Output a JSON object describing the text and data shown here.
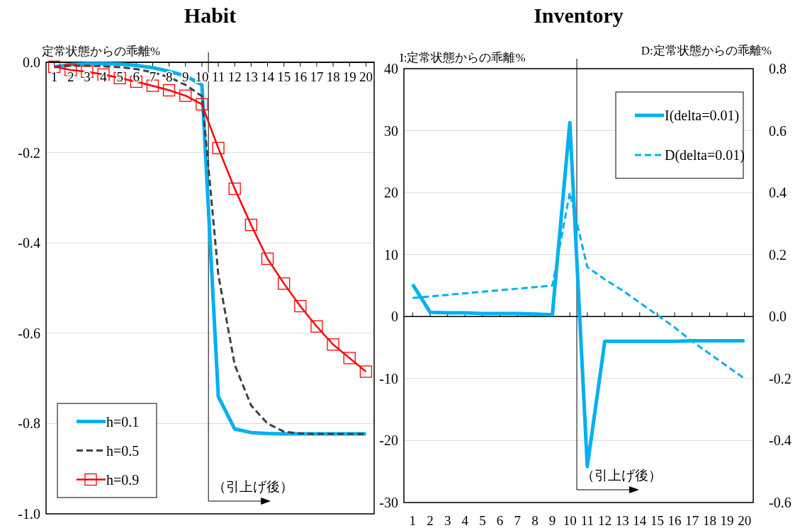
{
  "chart_data": [
    {
      "type": "line",
      "title": "Habit",
      "ylabel": "定常状態からの乖離%",
      "x": [
        1,
        2,
        3,
        4,
        5,
        6,
        7,
        8,
        9,
        10,
        11,
        12,
        13,
        14,
        15,
        16,
        17,
        18,
        19,
        20
      ],
      "xlim": [
        0.5,
        20.5
      ],
      "xticks": [
        1,
        2,
        3,
        4,
        5,
        6,
        7,
        8,
        9,
        10,
        11,
        12,
        13,
        14,
        15,
        16,
        17,
        18,
        19,
        20
      ],
      "ylim": [
        -1.0,
        0.0
      ],
      "yticks": [
        {
          "value": -1.0,
          "label": "-1.0"
        },
        {
          "value": -0.8,
          "label": "-0.8"
        },
        {
          "value": -0.6,
          "label": "-0.6"
        },
        {
          "value": -0.4,
          "label": "-0.4"
        },
        {
          "value": -0.2,
          "label": "-0.2"
        },
        {
          "value": 0.0,
          "label": "0.0"
        }
      ],
      "grid": "y",
      "legend": "bottom left",
      "series": [
        {
          "name": "h=0.1",
          "color": "#00b0f0",
          "line_style": "solid",
          "values": [
            -0.01,
            -0.005,
            -0.003,
            -0.003,
            -0.004,
            -0.007,
            -0.012,
            -0.02,
            -0.03,
            -0.05,
            -0.74,
            -0.812,
            -0.82,
            -0.822,
            -0.823,
            -0.823,
            -0.823,
            -0.823,
            -0.823,
            -0.823
          ]
        },
        {
          "name": "h=0.5",
          "color": "#404040",
          "line_style": "dashed",
          "values": [
            -0.01,
            -0.008,
            -0.008,
            -0.009,
            -0.011,
            -0.015,
            -0.022,
            -0.033,
            -0.05,
            -0.075,
            -0.47,
            -0.67,
            -0.76,
            -0.8,
            -0.818,
            -0.822,
            -0.823,
            -0.823,
            -0.823,
            -0.823
          ]
        },
        {
          "name": "h=0.9",
          "color": "#ff0000",
          "line_style": "solid",
          "marker": "square",
          "values": [
            -0.01,
            -0.017,
            -0.021,
            -0.027,
            -0.035,
            -0.043,
            -0.052,
            -0.062,
            -0.074,
            -0.093,
            -0.19,
            -0.28,
            -0.36,
            -0.435,
            -0.49,
            -0.54,
            -0.585,
            -0.625,
            -0.655,
            -0.685
          ]
        }
      ],
      "ref_lines": [
        {
          "axis": "x",
          "value": 10.4,
          "label": "（引上げ後）"
        }
      ]
    },
    {
      "type": "line",
      "title": "Inventory",
      "ylabel": "I:定常状態からの乖離%",
      "y2label": "D:定常状態からの乖離%",
      "x": [
        1,
        2,
        3,
        4,
        5,
        6,
        7,
        8,
        9,
        10,
        11,
        12,
        13,
        14,
        15,
        16,
        17,
        18,
        19,
        20
      ],
      "xlim": [
        0.5,
        20.5
      ],
      "xticks": [
        1,
        2,
        3,
        4,
        5,
        6,
        7,
        8,
        9,
        10,
        11,
        12,
        13,
        14,
        15,
        16,
        17,
        18,
        19,
        20
      ],
      "ylim": [
        -30,
        40
      ],
      "yticks": [
        -30,
        -20,
        -10,
        0,
        10,
        20,
        30,
        40
      ],
      "y2lim": [
        -0.6,
        0.8
      ],
      "y2ticks": [
        {
          "value": -0.6,
          "label": "-0.6"
        },
        {
          "value": -0.4,
          "label": "-0.4"
        },
        {
          "value": -0.2,
          "label": "-0.2"
        },
        {
          "value": 0.0,
          "label": "0.0"
        },
        {
          "value": 0.2,
          "label": "0.2"
        },
        {
          "value": 0.4,
          "label": "0.4"
        },
        {
          "value": 0.6,
          "label": "0.6"
        },
        {
          "value": 0.8,
          "label": "0.8"
        }
      ],
      "grid": "y",
      "legend": "top right",
      "series": [
        {
          "name": "I(delta=0.01)",
          "color": "#00b0f0",
          "line_style": "solid",
          "values": [
            5.2,
            0.7,
            0.6,
            0.6,
            0.5,
            0.5,
            0.5,
            0.4,
            0.3,
            31.3,
            -24.2,
            -4.0,
            -4.0,
            -4.0,
            -4.0,
            -4.0,
            -3.9,
            -3.9,
            -3.9,
            -3.9
          ]
        },
        {
          "name": "D(delta=0.01)",
          "color": "#00b0f0",
          "line_style": "dashed",
          "axis": "y2",
          "values": [
            0.06,
            0.065,
            0.07,
            0.075,
            0.08,
            0.085,
            0.09,
            0.095,
            0.1,
            0.4,
            0.16,
            0.12,
            0.085,
            0.045,
            0.005,
            -0.035,
            -0.08,
            -0.12,
            -0.16,
            -0.2
          ]
        }
      ],
      "ref_lines": [
        {
          "axis": "x",
          "value": 10.4,
          "label": "（引上げ後）"
        }
      ]
    }
  ]
}
